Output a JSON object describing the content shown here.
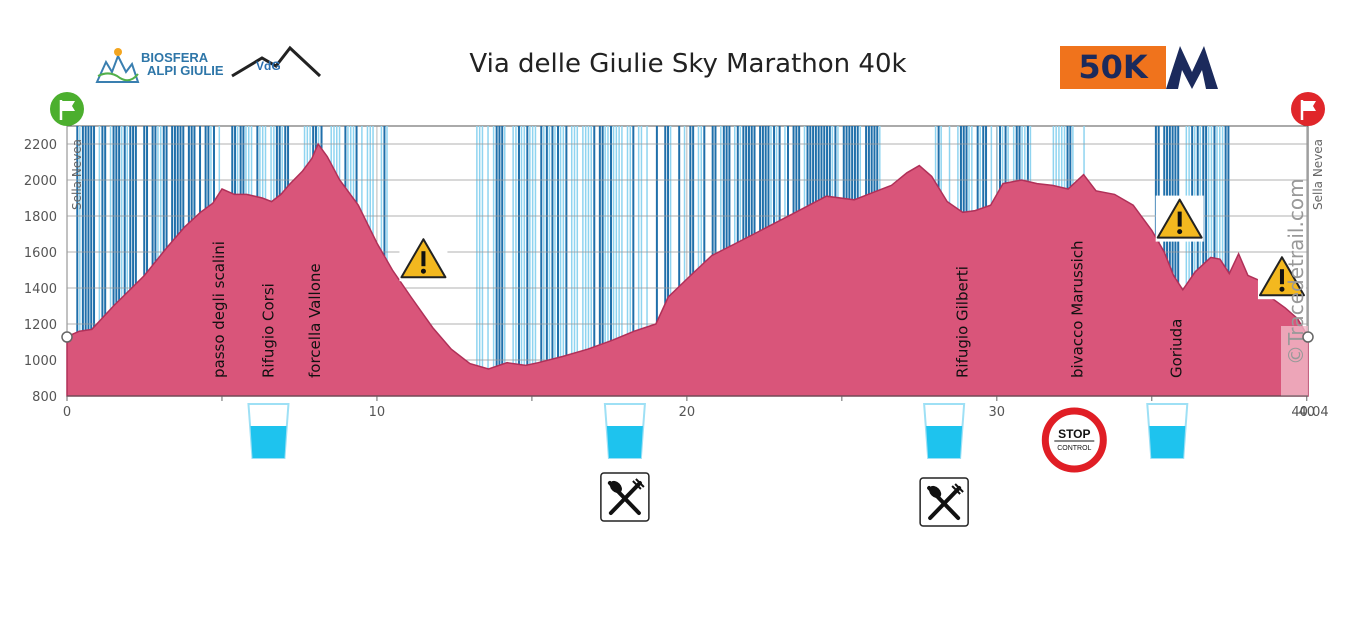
{
  "header": {
    "title": "Via delle Giulie Sky Marathon 40k",
    "logo_left_text_1": "BIOSFERA",
    "logo_left_text_2": "ALPI GIULIE",
    "logo_vdg_text": "VdG",
    "badge_text": "50K",
    "badge_letter": "M"
  },
  "watermark": "©Tracedetrail.com",
  "colors": {
    "profile_fill": "#d9557a",
    "profile_stroke": "#b03058",
    "band_dark": "#1f6faa",
    "band_light": "#8fd4f0",
    "water": "#1ec3ee",
    "stop_red": "#e01e25",
    "warning_yellow": "#f3b81f",
    "flag_green": "#4caf2e",
    "flag_red": "#e0262a",
    "badge_orange": "#f0731c",
    "badge_navy": "#1b2a5c"
  },
  "chart_data": {
    "type": "area",
    "xlim": [
      0,
      40.04
    ],
    "ylim": [
      800,
      2300
    ],
    "x_ticks": [
      0,
      10,
      20,
      30,
      40
    ],
    "x_end_label": "40.04",
    "y_ticks": [
      800,
      1000,
      1200,
      1400,
      1600,
      1800,
      2000,
      2200
    ],
    "grid": true,
    "start_label": "Sella Nevea",
    "end_label": "Sella Nevea",
    "profile": [
      [
        0,
        1130
      ],
      [
        0.4,
        1160
      ],
      [
        0.8,
        1170
      ],
      [
        1.5,
        1300
      ],
      [
        2.5,
        1470
      ],
      [
        3.2,
        1620
      ],
      [
        3.8,
        1740
      ],
      [
        4.3,
        1820
      ],
      [
        4.7,
        1870
      ],
      [
        5.0,
        1950
      ],
      [
        5.4,
        1920
      ],
      [
        5.8,
        1920
      ],
      [
        6.3,
        1900
      ],
      [
        6.6,
        1880
      ],
      [
        6.9,
        1920
      ],
      [
        7.2,
        1980
      ],
      [
        7.6,
        2050
      ],
      [
        7.9,
        2120
      ],
      [
        8.1,
        2200
      ],
      [
        8.4,
        2130
      ],
      [
        8.8,
        2000
      ],
      [
        9.4,
        1860
      ],
      [
        10.0,
        1650
      ],
      [
        10.5,
        1500
      ],
      [
        11.1,
        1350
      ],
      [
        11.8,
        1180
      ],
      [
        12.4,
        1060
      ],
      [
        13.0,
        980
      ],
      [
        13.6,
        950
      ],
      [
        14.2,
        985
      ],
      [
        14.8,
        970
      ],
      [
        15.2,
        985
      ],
      [
        16.0,
        1020
      ],
      [
        16.8,
        1060
      ],
      [
        17.6,
        1110
      ],
      [
        18.3,
        1160
      ],
      [
        19.0,
        1200
      ],
      [
        19.4,
        1350
      ],
      [
        20.0,
        1450
      ],
      [
        20.8,
        1580
      ],
      [
        21.6,
        1650
      ],
      [
        22.5,
        1730
      ],
      [
        23.5,
        1820
      ],
      [
        24.5,
        1910
      ],
      [
        25.4,
        1890
      ],
      [
        26.0,
        1930
      ],
      [
        26.6,
        1970
      ],
      [
        27.1,
        2040
      ],
      [
        27.5,
        2080
      ],
      [
        27.9,
        2020
      ],
      [
        28.4,
        1880
      ],
      [
        28.9,
        1820
      ],
      [
        29.3,
        1830
      ],
      [
        29.8,
        1860
      ],
      [
        30.2,
        1980
      ],
      [
        30.8,
        2000
      ],
      [
        31.3,
        1980
      ],
      [
        31.8,
        1970
      ],
      [
        32.3,
        1950
      ],
      [
        32.8,
        2030
      ],
      [
        33.2,
        1940
      ],
      [
        33.8,
        1920
      ],
      [
        34.4,
        1860
      ],
      [
        35.0,
        1720
      ],
      [
        35.4,
        1600
      ],
      [
        35.7,
        1470
      ],
      [
        36.0,
        1390
      ],
      [
        36.4,
        1490
      ],
      [
        36.9,
        1570
      ],
      [
        37.2,
        1560
      ],
      [
        37.5,
        1480
      ],
      [
        37.8,
        1590
      ],
      [
        38.1,
        1470
      ],
      [
        38.5,
        1440
      ],
      [
        38.9,
        1340
      ],
      [
        39.3,
        1290
      ],
      [
        39.7,
        1230
      ],
      [
        40.04,
        1130
      ]
    ],
    "vertical_labels": [
      {
        "km": 4.9,
        "text": "passo degli scalini"
      },
      {
        "km": 6.5,
        "text": "Rifugio Corsi"
      },
      {
        "km": 8.0,
        "text": "forcella Vallone"
      },
      {
        "km": 28.9,
        "text": "Rifugio Gilberti"
      },
      {
        "km": 32.6,
        "text": "bivacco Marussich"
      },
      {
        "km": 35.8,
        "text": "Goriuda"
      }
    ],
    "water_points": [
      6.5,
      18.0,
      28.3,
      35.5
    ],
    "food_points": [
      18.0,
      28.3
    ],
    "control_point": 32.5,
    "warnings": [
      {
        "km": 11.5,
        "elev": 1560
      },
      {
        "km": 35.9,
        "elev": 1780
      },
      {
        "km": 39.2,
        "elev": 1460
      }
    ]
  }
}
